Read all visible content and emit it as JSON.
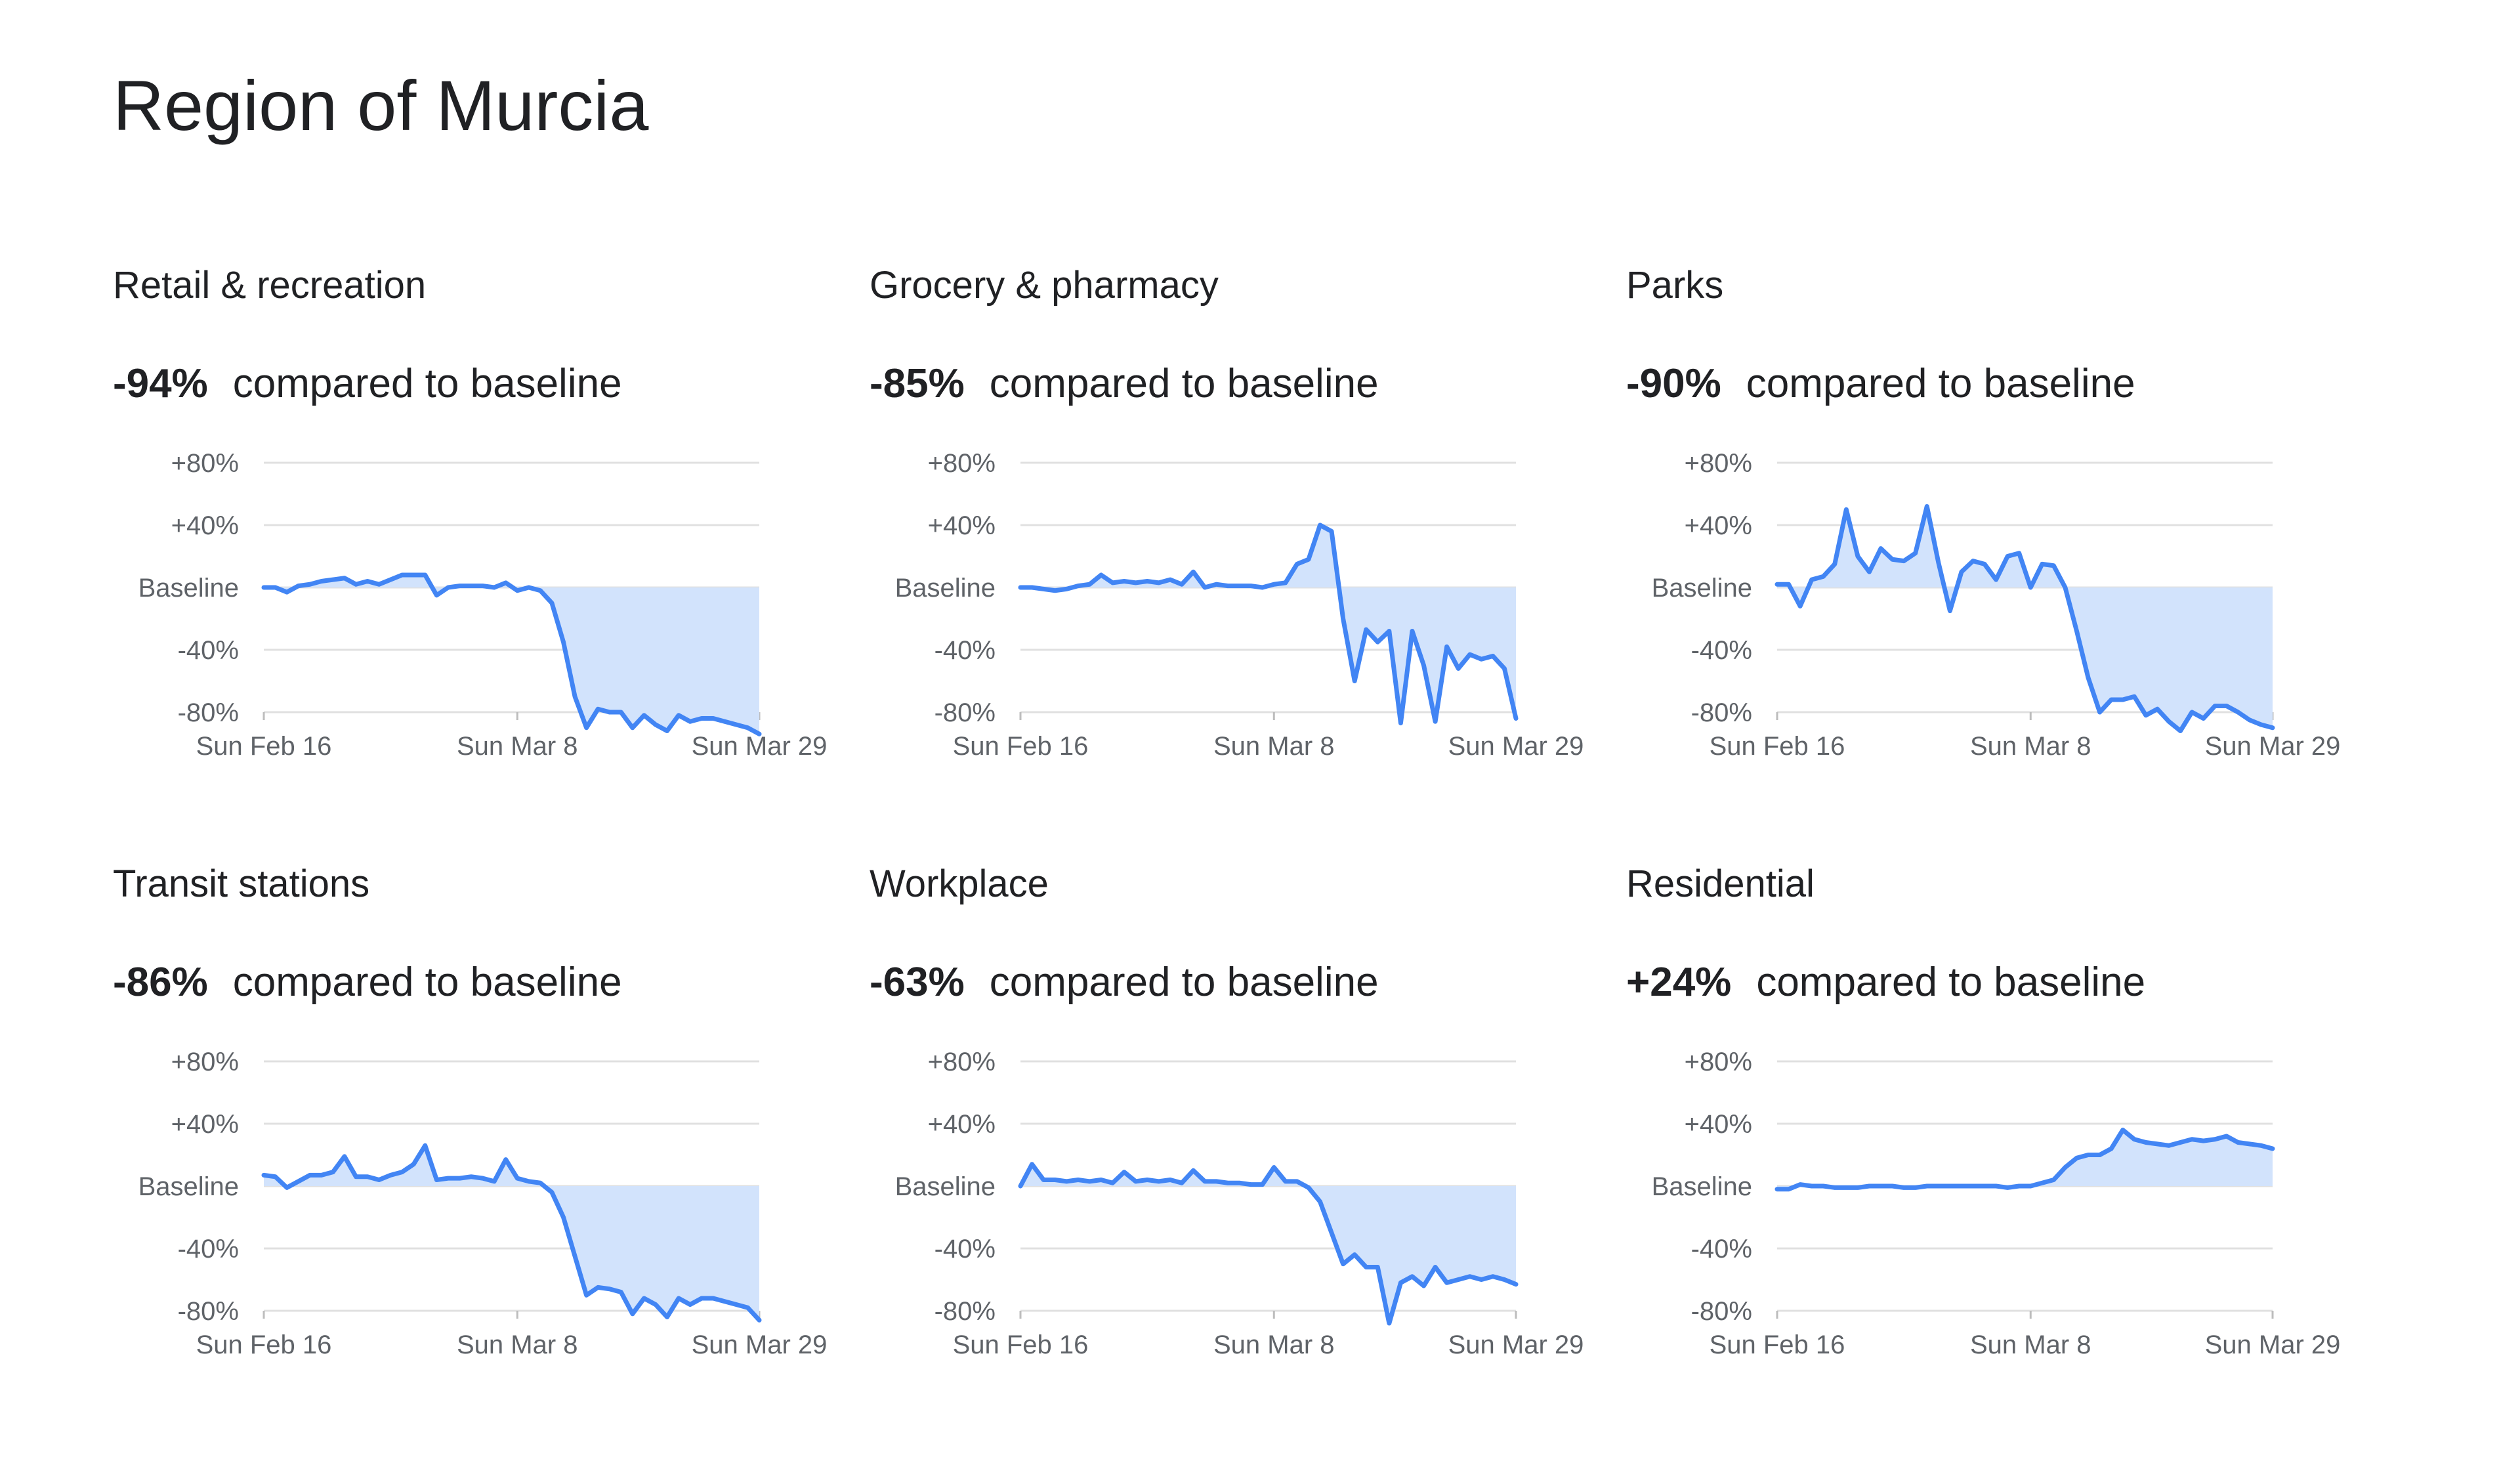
{
  "page": {
    "title": "Region of Murcia"
  },
  "colors": {
    "line": "#4285f4",
    "fill": "#d2e3fc",
    "grid": "#e0e0e0",
    "text": "#202124",
    "axis_text": "#5f6368"
  },
  "panels": [
    {
      "title": "Retail & recreation",
      "change": "-94%",
      "change_text": "compared to baseline"
    },
    {
      "title": "Grocery & pharmacy",
      "change": "-85%",
      "change_text": "compared to baseline"
    },
    {
      "title": "Parks",
      "change": "-90%",
      "change_text": "compared to baseline"
    },
    {
      "title": "Transit stations",
      "change": "-86%",
      "change_text": "compared to baseline"
    },
    {
      "title": "Workplace",
      "change": "-63%",
      "change_text": "compared to baseline"
    },
    {
      "title": "Residential",
      "change": "+24%",
      "change_text": "compared to baseline"
    }
  ],
  "chart_data": [
    {
      "type": "area",
      "title": "Retail & recreation",
      "x_ticks": [
        "Sun Feb 16",
        "Sun Mar 8",
        "Sun Mar 29"
      ],
      "y_ticks": [
        {
          "value": 80,
          "label": "+80%"
        },
        {
          "value": 40,
          "label": "+40%"
        },
        {
          "value": 0,
          "label": "Baseline"
        },
        {
          "value": -40,
          "label": "-40%"
        },
        {
          "value": -80,
          "label": "-80%"
        }
      ],
      "ylim": [
        -80,
        80
      ],
      "grid": true,
      "x_start": "2020-02-15",
      "x_end": "2020-03-29",
      "values": [
        0,
        0,
        -3,
        1,
        2,
        4,
        5,
        6,
        2,
        4,
        2,
        5,
        8,
        8,
        8,
        -5,
        0,
        1,
        1,
        1,
        0,
        3,
        -2,
        0,
        -2,
        -10,
        -35,
        -70,
        -90,
        -78,
        -80,
        -80,
        -90,
        -82,
        -88,
        -92,
        -82,
        -86,
        -84,
        -84,
        -86,
        -88,
        -90,
        -94
      ]
    },
    {
      "type": "area",
      "title": "Grocery & pharmacy",
      "x_ticks": [
        "Sun Feb 16",
        "Sun Mar 8",
        "Sun Mar 29"
      ],
      "y_ticks": [
        {
          "value": 80,
          "label": "+80%"
        },
        {
          "value": 40,
          "label": "+40%"
        },
        {
          "value": 0,
          "label": "Baseline"
        },
        {
          "value": -40,
          "label": "-40%"
        },
        {
          "value": -80,
          "label": "-80%"
        }
      ],
      "ylim": [
        -80,
        80
      ],
      "grid": true,
      "x_start": "2020-02-15",
      "x_end": "2020-03-29",
      "values": [
        0,
        0,
        -1,
        -2,
        -1,
        1,
        2,
        8,
        3,
        4,
        3,
        4,
        3,
        5,
        2,
        10,
        0,
        2,
        1,
        1,
        1,
        0,
        2,
        3,
        15,
        18,
        40,
        36,
        -20,
        -60,
        -27,
        -35,
        -28,
        -87,
        -28,
        -50,
        -86,
        -38,
        -52,
        -43,
        -46,
        -44,
        -52,
        -84
      ]
    },
    {
      "type": "area",
      "title": "Parks",
      "x_ticks": [
        "Sun Feb 16",
        "Sun Mar 8",
        "Sun Mar 29"
      ],
      "y_ticks": [
        {
          "value": 80,
          "label": "+80%"
        },
        {
          "value": 40,
          "label": "+40%"
        },
        {
          "value": 0,
          "label": "Baseline"
        },
        {
          "value": -40,
          "label": "-40%"
        },
        {
          "value": -80,
          "label": "-80%"
        }
      ],
      "ylim": [
        -80,
        80
      ],
      "grid": true,
      "x_start": "2020-02-15",
      "x_end": "2020-03-29",
      "values": [
        2,
        2,
        -12,
        5,
        7,
        15,
        50,
        20,
        10,
        25,
        18,
        17,
        22,
        52,
        16,
        -15,
        10,
        17,
        15,
        5,
        20,
        22,
        0,
        15,
        14,
        0,
        -28,
        -58,
        -80,
        -72,
        -72,
        -70,
        -82,
        -78,
        -86,
        -92,
        -80,
        -84,
        -76,
        -76,
        -80,
        -85,
        -88,
        -90
      ]
    },
    {
      "type": "area",
      "title": "Transit stations",
      "x_ticks": [
        "Sun Feb 16",
        "Sun Mar 8",
        "Sun Mar 29"
      ],
      "y_ticks": [
        {
          "value": 80,
          "label": "+80%"
        },
        {
          "value": 40,
          "label": "+40%"
        },
        {
          "value": 0,
          "label": "Baseline"
        },
        {
          "value": -40,
          "label": "-40%"
        },
        {
          "value": -80,
          "label": "-80%"
        }
      ],
      "ylim": [
        -80,
        80
      ],
      "grid": true,
      "x_start": "2020-02-15",
      "x_end": "2020-03-29",
      "values": [
        7,
        6,
        -1,
        3,
        7,
        7,
        9,
        19,
        6,
        6,
        4,
        7,
        9,
        14,
        26,
        4,
        5,
        5,
        6,
        5,
        3,
        17,
        5,
        3,
        2,
        -4,
        -20,
        -45,
        -70,
        -65,
        -66,
        -68,
        -82,
        -72,
        -76,
        -84,
        -72,
        -76,
        -72,
        -72,
        -74,
        -76,
        -78,
        -86
      ]
    },
    {
      "type": "area",
      "title": "Workplace",
      "x_ticks": [
        "Sun Feb 16",
        "Sun Mar 8",
        "Sun Mar 29"
      ],
      "y_ticks": [
        {
          "value": 80,
          "label": "+80%"
        },
        {
          "value": 40,
          "label": "+40%"
        },
        {
          "value": 0,
          "label": "Baseline"
        },
        {
          "value": -40,
          "label": "-40%"
        },
        {
          "value": -80,
          "label": "-80%"
        }
      ],
      "ylim": [
        -80,
        80
      ],
      "grid": true,
      "x_start": "2020-02-15",
      "x_end": "2020-03-29",
      "values": [
        0,
        14,
        4,
        4,
        3,
        4,
        3,
        4,
        2,
        9,
        3,
        4,
        3,
        4,
        2,
        10,
        3,
        3,
        2,
        2,
        1,
        1,
        12,
        3,
        3,
        -1,
        -10,
        -30,
        -50,
        -44,
        -52,
        -52,
        -88,
        -62,
        -58,
        -64,
        -52,
        -62,
        -60,
        -58,
        -60,
        -58,
        -60,
        -63
      ]
    },
    {
      "type": "area",
      "title": "Residential",
      "x_ticks": [
        "Sun Feb 16",
        "Sun Mar 8",
        "Sun Mar 29"
      ],
      "y_ticks": [
        {
          "value": 80,
          "label": "+80%"
        },
        {
          "value": 40,
          "label": "+40%"
        },
        {
          "value": 0,
          "label": "Baseline"
        },
        {
          "value": -40,
          "label": "-40%"
        },
        {
          "value": -80,
          "label": "-80%"
        }
      ],
      "ylim": [
        -80,
        80
      ],
      "grid": true,
      "x_start": "2020-02-15",
      "x_end": "2020-03-29",
      "values": [
        -2,
        -2,
        1,
        0,
        0,
        -1,
        -1,
        -1,
        0,
        0,
        0,
        -1,
        -1,
        0,
        0,
        0,
        0,
        0,
        0,
        0,
        -1,
        0,
        0,
        2,
        4,
        12,
        18,
        20,
        20,
        24,
        36,
        30,
        28,
        27,
        26,
        28,
        30,
        29,
        30,
        32,
        28,
        27,
        26,
        24
      ]
    }
  ]
}
